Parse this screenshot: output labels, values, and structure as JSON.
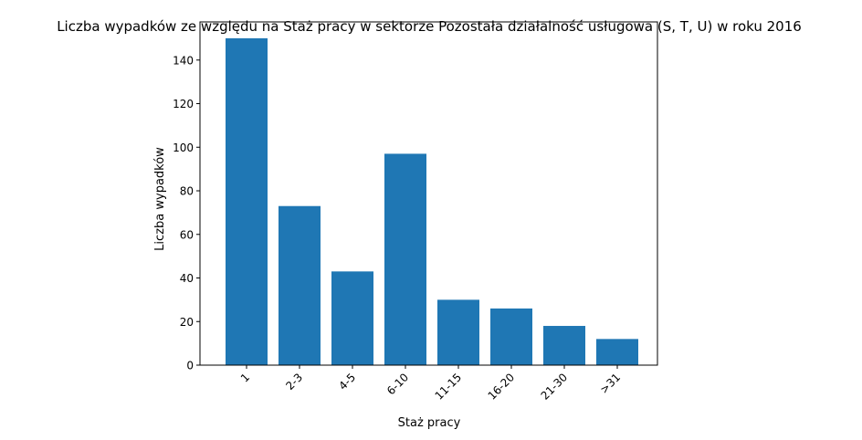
{
  "chart_data": {
    "type": "bar",
    "title": "Liczba wypadków ze względu na Staż pracy w sektorze Pozostała działalność usługowa  (S, T, U)   w roku 2016",
    "xlabel": "Staż pracy",
    "ylabel": "Liczba wypadków",
    "categories": [
      "1",
      "2-3",
      "4-5",
      "6-10",
      "11-15",
      "16-20",
      "21-30",
      ">31"
    ],
    "values": [
      150,
      73,
      43,
      97,
      30,
      26,
      18,
      12
    ],
    "ylim": [
      0,
      157.5
    ],
    "yticks": [
      0,
      20,
      40,
      60,
      80,
      100,
      120,
      140
    ],
    "bar_color": "#1f77b4",
    "grid": false,
    "legend": "none"
  }
}
